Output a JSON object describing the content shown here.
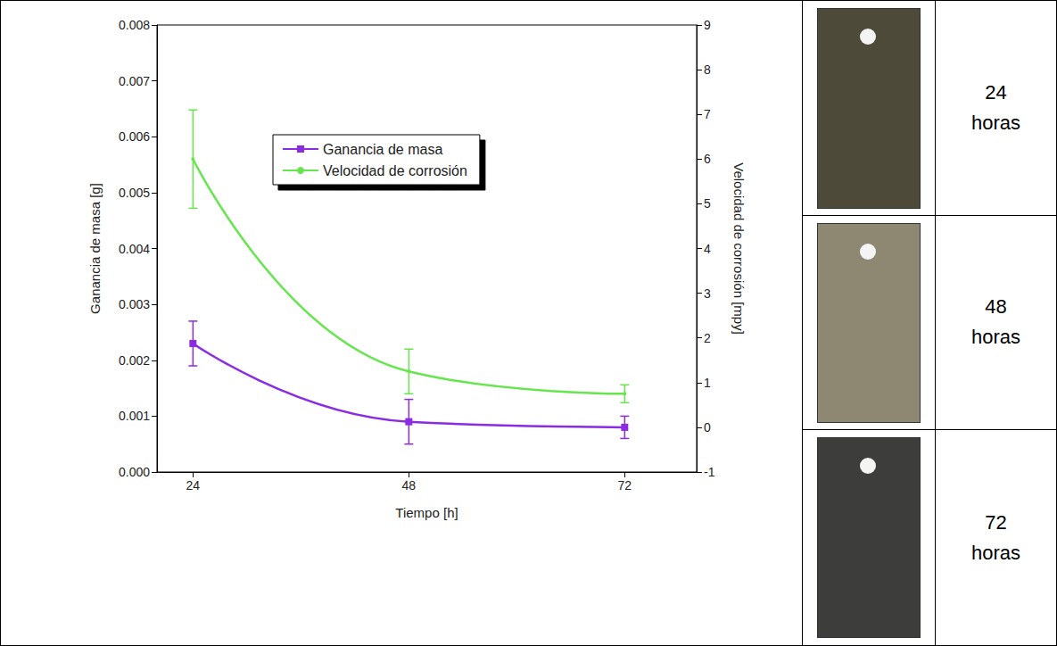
{
  "chart_data": {
    "type": "line",
    "x_label": "Tiempo [h]",
    "y_label": "Ganancia de masa [g]",
    "y2_label": "Velocidad de corrosión [mpy]",
    "x": [
      24,
      48,
      72
    ],
    "series": [
      {
        "name": "Ganancia de masa",
        "color": "#8b2be2",
        "marker": "square",
        "line_style": "smooth",
        "values": [
          0.0023,
          0.0009,
          0.0008
        ],
        "errors": [
          0.0004,
          0.0004,
          0.0002
        ]
      },
      {
        "name": "Velocidad de corrosión",
        "color": "#66e64d",
        "marker": "circle",
        "line_style": "smooth",
        "axis": "y2",
        "values": [
          6.0,
          1.25,
          0.75
        ],
        "errors": [
          1.1,
          0.5,
          0.2
        ]
      }
    ],
    "xlim": [
      20,
      80
    ],
    "xticks": [
      24,
      48,
      72
    ],
    "ylim": [
      0,
      0.008
    ],
    "yticks": [
      {
        "value": 0,
        "label": "0.000"
      },
      0.001,
      0.002,
      0.003,
      0.004,
      0.005,
      0.006,
      0.007,
      0.008
    ],
    "y2lim": [
      -1,
      9
    ],
    "y2ticks": [
      -1,
      0,
      1,
      2,
      3,
      4,
      5,
      6,
      7,
      8,
      9
    ],
    "grid": false,
    "legend": "top"
  },
  "samples": [
    {
      "label": "24 horas"
    },
    {
      "label": "48 horas"
    },
    {
      "label": "72 horas"
    }
  ]
}
